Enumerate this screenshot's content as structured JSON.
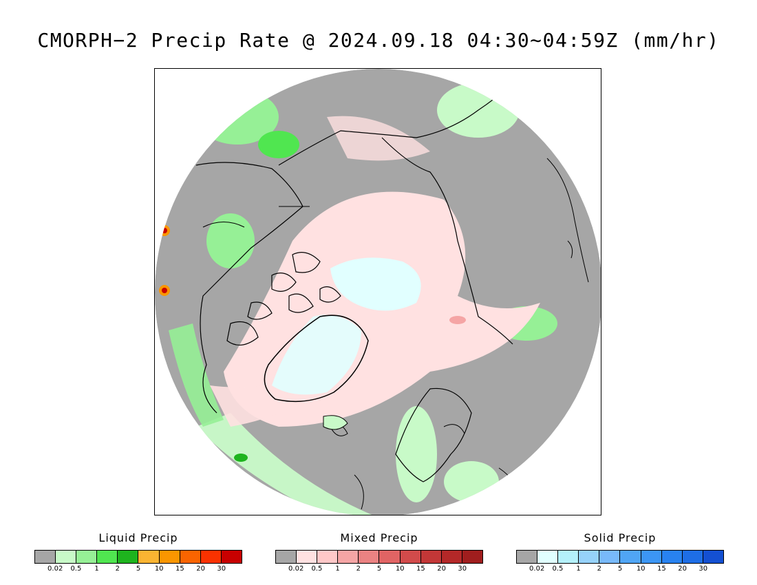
{
  "title": "CMORPH−2 Precip Rate @ 2024.09.18 04:30∼04:59Z (mm/hr)",
  "map": {
    "projection": "north-polar-stereographic",
    "background_color": "#a6a6a6",
    "coastline_color": "#000000"
  },
  "legends": [
    {
      "title": "Liquid Precip",
      "ticks": [
        "0.02",
        "0.5",
        "1",
        "2",
        "5",
        "10",
        "15",
        "20",
        "30"
      ],
      "colors": [
        "#a6a6a6",
        "#c8fac8",
        "#96f096",
        "#50e650",
        "#1eb41e",
        "#fab432",
        "#fa9600",
        "#fa6400",
        "#fa3200",
        "#c80000"
      ]
    },
    {
      "title": "Mixed Precip",
      "ticks": [
        "0.02",
        "0.5",
        "1",
        "2",
        "5",
        "10",
        "15",
        "20",
        "30"
      ],
      "colors": [
        "#a6a6a6",
        "#ffe1e1",
        "#ffc8c8",
        "#f5a5a5",
        "#eb8282",
        "#e16464",
        "#d24b4b",
        "#c33737",
        "#b42828",
        "#a01e1e"
      ]
    },
    {
      "title": "Solid Precip",
      "ticks": [
        "0.02",
        "0.5",
        "1",
        "2",
        "5",
        "10",
        "15",
        "20",
        "30"
      ],
      "colors": [
        "#a6a6a6",
        "#e1ffff",
        "#b4f0fa",
        "#96d2fa",
        "#78b9fa",
        "#50a5f5",
        "#3c96f5",
        "#2882f0",
        "#1e6ee6",
        "#1450d2"
      ]
    }
  ]
}
